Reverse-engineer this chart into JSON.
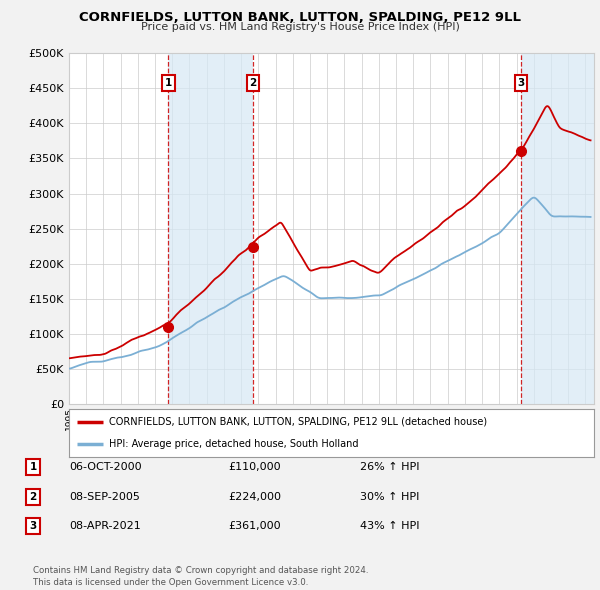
{
  "title": "CORNFIELDS, LUTTON BANK, LUTTON, SPALDING, PE12 9LL",
  "subtitle": "Price paid vs. HM Land Registry's House Price Index (HPI)",
  "ylim": [
    0,
    500000
  ],
  "yticks": [
    0,
    50000,
    100000,
    150000,
    200000,
    250000,
    300000,
    350000,
    400000,
    450000,
    500000
  ],
  "ytick_labels": [
    "£0",
    "£50K",
    "£100K",
    "£150K",
    "£200K",
    "£250K",
    "£300K",
    "£350K",
    "£400K",
    "£450K",
    "£500K"
  ],
  "sale_color": "#cc0000",
  "hpi_color": "#7bafd4",
  "shade_color": "#d6e8f5",
  "grid_color": "#cccccc",
  "background_color": "#f2f2f2",
  "plot_bg_color": "#ffffff",
  "sale_year_floats": [
    2000.77,
    2005.69,
    2021.27
  ],
  "sale_prices": [
    110000,
    224000,
    361000
  ],
  "sale_labels": [
    "1",
    "2",
    "3"
  ],
  "legend_sale": "CORNFIELDS, LUTTON BANK, LUTTON, SPALDING, PE12 9LL (detached house)",
  "legend_hpi": "HPI: Average price, detached house, South Holland",
  "transactions": [
    {
      "num": "1",
      "date": "06-OCT-2000",
      "price": "£110,000",
      "hpi": "26% ↑ HPI"
    },
    {
      "num": "2",
      "date": "08-SEP-2005",
      "price": "£224,000",
      "hpi": "30% ↑ HPI"
    },
    {
      "num": "3",
      "date": "08-APR-2021",
      "price": "£361,000",
      "hpi": "43% ↑ HPI"
    }
  ],
  "footer": "Contains HM Land Registry data © Crown copyright and database right 2024.\nThis data is licensed under the Open Government Licence v3.0.",
  "xmin": 1995.0,
  "xmax": 2025.5
}
